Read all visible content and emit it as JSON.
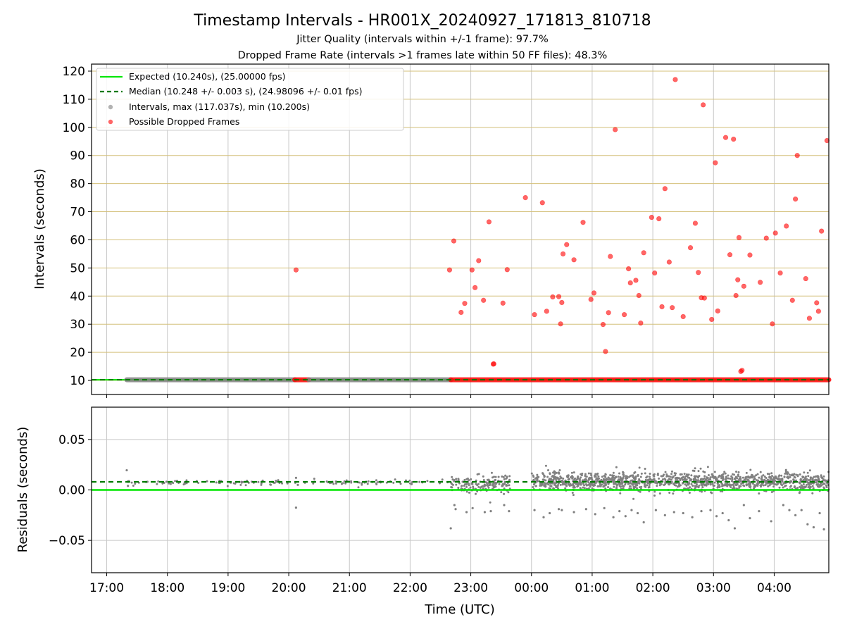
{
  "title": "Timestamp Intervals - HR001X_20240927_171813_810718",
  "subtitle_jitter": "Jitter Quality (intervals within +/-1 frame): 97.7%",
  "subtitle_dropped": "Dropped Frame Rate (intervals >1 frames late within 50 FF files): 48.3%",
  "colors": {
    "expected": "#00e600",
    "median": "#007a00",
    "intervals": "#808080",
    "dropped": "#ff0000",
    "hgrid_top": "#d4c07a",
    "grid": "#c8c8c8"
  },
  "chart_data": [
    {
      "type": "scatter",
      "panel": "intervals",
      "ylabel": "Intervals (seconds)",
      "xlabel": "",
      "x_unit": "hours since 17:00 UTC",
      "xlim": [
        -0.25,
        11.9
      ],
      "ylim": [
        5,
        122.5
      ],
      "yticks": [
        10,
        20,
        30,
        40,
        50,
        60,
        70,
        80,
        90,
        100,
        110,
        120
      ],
      "grid": "on",
      "legend_position": "top-left",
      "legend": [
        {
          "label": "Expected (10.240s), (25.00000 fps)",
          "style": "solid-line",
          "color": "#00e600"
        },
        {
          "label": "Median (10.248 +/- 0.003 s), (24.98096 +/- 0.01 fps)",
          "style": "dashed-line",
          "color": "#007a00"
        },
        {
          "label": "Intervals, max (117.037s), min (10.200s)",
          "style": "dot",
          "color": "#808080"
        },
        {
          "label": "Possible Dropped Frames",
          "style": "dot",
          "color": "#ff0000"
        }
      ],
      "expected_line": 10.24,
      "median_line": 10.248,
      "baseline_segments": [
        {
          "start": 0.33,
          "end": 3.1,
          "color": "#808080"
        },
        {
          "start": 3.1,
          "end": 3.33,
          "color": "#ff0000"
        },
        {
          "start": 3.33,
          "end": 5.67,
          "color": "#808080"
        },
        {
          "start": 5.67,
          "end": 11.9,
          "color": "#ff0000"
        }
      ],
      "dropped_points": [
        [
          3.12,
          49.3
        ],
        [
          5.65,
          49.3
        ],
        [
          5.72,
          59.6
        ],
        [
          5.84,
          34.2
        ],
        [
          5.9,
          37.4
        ],
        [
          6.02,
          49.3
        ],
        [
          6.07,
          43.0
        ],
        [
          6.13,
          52.6
        ],
        [
          6.21,
          38.5
        ],
        [
          6.3,
          66.4
        ],
        [
          6.37,
          15.8
        ],
        [
          6.38,
          15.9
        ],
        [
          6.53,
          37.5
        ],
        [
          6.6,
          49.4
        ],
        [
          6.9,
          75.0
        ],
        [
          7.05,
          33.4
        ],
        [
          7.18,
          73.2
        ],
        [
          7.25,
          34.6
        ],
        [
          7.35,
          39.7
        ],
        [
          7.45,
          39.8
        ],
        [
          7.48,
          30.1
        ],
        [
          7.5,
          37.7
        ],
        [
          7.52,
          55.0
        ],
        [
          7.58,
          58.3
        ],
        [
          7.7,
          52.9
        ],
        [
          7.85,
          66.2
        ],
        [
          7.98,
          38.8
        ],
        [
          8.03,
          41.1
        ],
        [
          8.18,
          29.9
        ],
        [
          8.22,
          20.3
        ],
        [
          8.27,
          34.1
        ],
        [
          8.3,
          54.1
        ],
        [
          8.38,
          99.2
        ],
        [
          8.53,
          33.4
        ],
        [
          8.6,
          49.7
        ],
        [
          8.63,
          44.7
        ],
        [
          8.72,
          45.6
        ],
        [
          8.77,
          40.2
        ],
        [
          8.8,
          30.4
        ],
        [
          8.85,
          55.4
        ],
        [
          8.98,
          68.0
        ],
        [
          9.03,
          48.2
        ],
        [
          9.1,
          67.5
        ],
        [
          9.15,
          36.2
        ],
        [
          9.2,
          78.2
        ],
        [
          9.27,
          52.1
        ],
        [
          9.32,
          35.9
        ],
        [
          9.37,
          117.0
        ],
        [
          9.5,
          32.7
        ],
        [
          9.62,
          57.2
        ],
        [
          9.7,
          65.9
        ],
        [
          9.75,
          48.4
        ],
        [
          9.8,
          39.4
        ],
        [
          9.85,
          39.3
        ],
        [
          9.83,
          108.0
        ],
        [
          9.97,
          31.7
        ],
        [
          10.03,
          87.4
        ],
        [
          10.07,
          34.7
        ],
        [
          10.2,
          96.4
        ],
        [
          10.27,
          54.7
        ],
        [
          10.33,
          95.8
        ],
        [
          10.37,
          40.2
        ],
        [
          10.4,
          45.8
        ],
        [
          10.42,
          60.8
        ],
        [
          10.45,
          13.2
        ],
        [
          10.47,
          13.6
        ],
        [
          10.5,
          43.5
        ],
        [
          10.6,
          54.6
        ],
        [
          10.77,
          44.9
        ],
        [
          10.87,
          60.6
        ],
        [
          10.97,
          30.1
        ],
        [
          11.02,
          62.4
        ],
        [
          11.1,
          48.2
        ],
        [
          11.2,
          64.9
        ],
        [
          11.3,
          38.5
        ],
        [
          11.35,
          74.5
        ],
        [
          11.38,
          90.0
        ],
        [
          11.52,
          46.2
        ],
        [
          11.58,
          32.1
        ],
        [
          11.7,
          37.6
        ],
        [
          11.73,
          34.6
        ],
        [
          11.78,
          63.1
        ],
        [
          11.87,
          95.3
        ]
      ]
    },
    {
      "type": "scatter",
      "panel": "residuals",
      "ylabel": "Residuals (seconds)",
      "xlabel": "Time (UTC)",
      "x_unit": "hours since 17:00 UTC",
      "xlim": [
        -0.25,
        11.9
      ],
      "ylim": [
        -0.082,
        0.082
      ],
      "yticks": [
        0.05,
        0.0,
        -0.05
      ],
      "ytick_labels": [
        "0.05",
        "0.00",
        "−0.05"
      ],
      "xticks": [
        0,
        1,
        2,
        3,
        4,
        5,
        6,
        7,
        8,
        9,
        10,
        11
      ],
      "xtick_labels": [
        "17:00",
        "18:00",
        "19:00",
        "20:00",
        "21:00",
        "22:00",
        "23:00",
        "00:00",
        "01:00",
        "02:00",
        "03:00",
        "04:00"
      ],
      "grid": "on",
      "expected_line": 0.0,
      "median_line": 0.008,
      "clusters": [
        {
          "start": 0.33,
          "end": 5.67,
          "center": 0.0075,
          "spread": 0.0012,
          "count": 130
        },
        {
          "start": 5.67,
          "end": 6.65,
          "center": 0.0065,
          "spread": 0.0045,
          "count": 160
        },
        {
          "start": 7.0,
          "end": 11.9,
          "center": 0.0085,
          "spread": 0.0045,
          "count": 1300
        }
      ],
      "points": [
        [
          0.33,
          0.0195
        ],
        [
          0.35,
          0.004
        ],
        [
          3.12,
          -0.0175
        ],
        [
          3.12,
          0.012
        ],
        [
          3.15,
          0.005
        ],
        [
          5.67,
          -0.038
        ],
        [
          5.73,
          -0.015
        ],
        [
          5.75,
          -0.019
        ],
        [
          5.93,
          -0.022
        ],
        [
          6.03,
          -0.018
        ],
        [
          6.23,
          -0.022
        ],
        [
          6.33,
          -0.021
        ],
        [
          6.55,
          -0.015
        ],
        [
          6.63,
          -0.021
        ],
        [
          7.05,
          -0.02
        ],
        [
          7.2,
          -0.027
        ],
        [
          7.3,
          -0.023
        ],
        [
          7.45,
          -0.019
        ],
        [
          7.5,
          -0.02
        ],
        [
          7.7,
          -0.022
        ],
        [
          7.9,
          -0.019
        ],
        [
          8.05,
          -0.024
        ],
        [
          8.2,
          -0.018
        ],
        [
          8.35,
          -0.027
        ],
        [
          8.45,
          -0.021
        ],
        [
          8.55,
          -0.026
        ],
        [
          8.65,
          -0.02
        ],
        [
          8.75,
          -0.023
        ],
        [
          8.85,
          -0.032
        ],
        [
          9.05,
          -0.02
        ],
        [
          9.2,
          -0.025
        ],
        [
          9.35,
          -0.022
        ],
        [
          9.5,
          -0.023
        ],
        [
          9.65,
          -0.027
        ],
        [
          9.8,
          -0.021
        ],
        [
          9.95,
          -0.02
        ],
        [
          10.05,
          -0.026
        ],
        [
          10.15,
          -0.023
        ],
        [
          10.25,
          -0.03
        ],
        [
          10.35,
          -0.038
        ],
        [
          10.5,
          -0.015
        ],
        [
          10.6,
          -0.028
        ],
        [
          10.75,
          -0.021
        ],
        [
          10.95,
          -0.031
        ],
        [
          11.15,
          -0.015
        ],
        [
          11.25,
          -0.02
        ],
        [
          11.35,
          -0.025
        ],
        [
          11.45,
          -0.02
        ],
        [
          11.55,
          -0.034
        ],
        [
          11.65,
          -0.037
        ],
        [
          11.75,
          -0.023
        ],
        [
          11.82,
          -0.039
        ]
      ]
    }
  ]
}
